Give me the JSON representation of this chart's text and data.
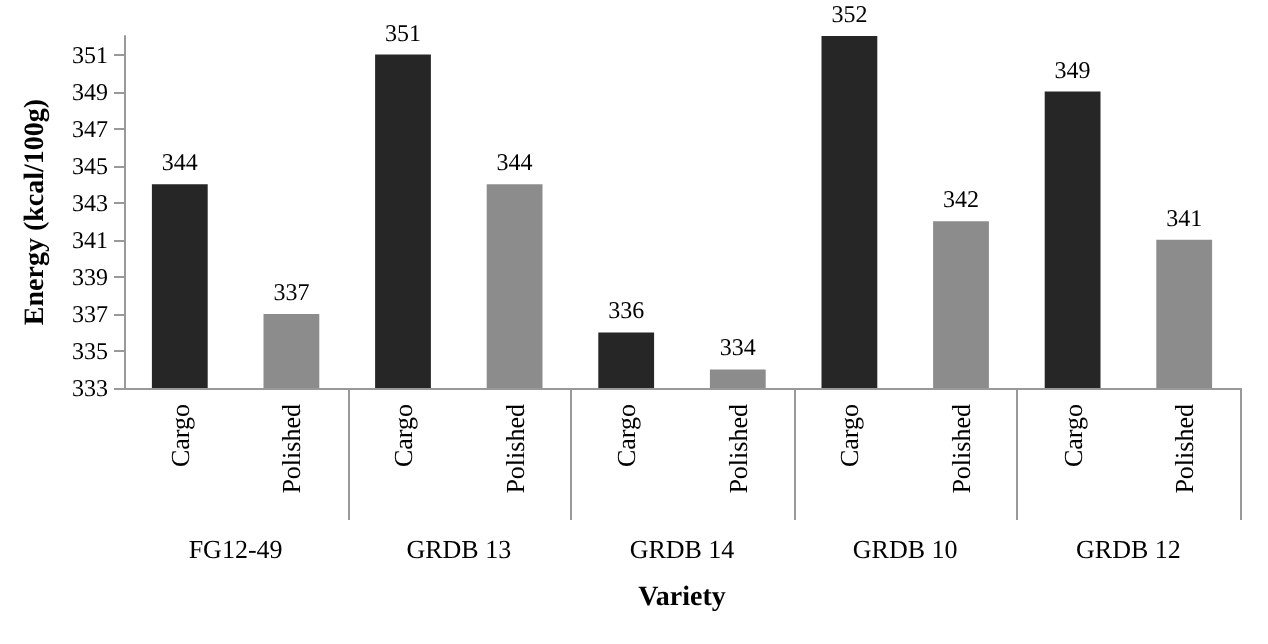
{
  "chart_data": {
    "type": "bar",
    "xlabel": "Variety",
    "ylabel": "Energy (kcal/100g)",
    "categories": [
      "FG12-49",
      "GRDB 13",
      "GRDB 14",
      "GRDB 10",
      "GRDB 12"
    ],
    "series": [
      {
        "name": "Cargo",
        "color": "#262626",
        "values": [
          344,
          351,
          336,
          352,
          349
        ]
      },
      {
        "name": "Polished",
        "color": "#8c8c8c",
        "values": [
          337,
          344,
          334,
          342,
          341
        ]
      }
    ],
    "ylim": [
      333,
      352
    ],
    "yticks": [
      333,
      335,
      337,
      339,
      341,
      343,
      345,
      347,
      349,
      351
    ],
    "data_labels": true,
    "grid": false,
    "legend": false
  }
}
